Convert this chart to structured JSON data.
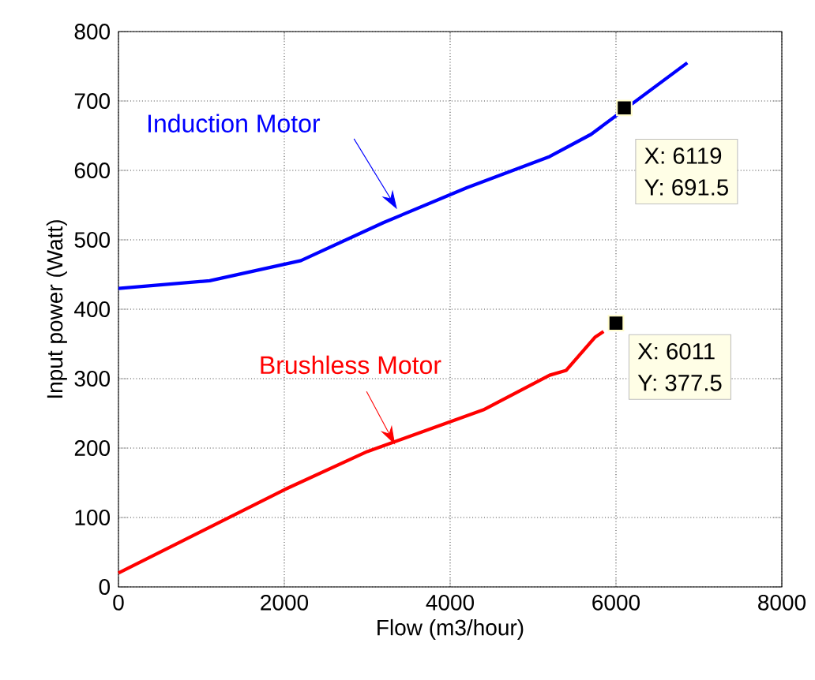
{
  "chart_data": {
    "type": "line",
    "xlabel": "Flow (m3/hour)",
    "ylabel": "Input power  (Watt)",
    "series": [
      {
        "name": "Induction Motor",
        "color": "#0000ff",
        "x": [
          0,
          1100,
          2200,
          3200,
          4200,
          5200,
          5700,
          6860
        ],
        "values": [
          430,
          441,
          470,
          525,
          575,
          620,
          652,
          755
        ]
      },
      {
        "name": "Brushless Motor",
        "color": "#ff0000",
        "x": [
          0,
          1000,
          2000,
          3000,
          4400,
          5200,
          5400,
          5750,
          5850
        ],
        "values": [
          20,
          80,
          140,
          195,
          255,
          305,
          312,
          360,
          368
        ]
      },
      {
        "type": "scatter",
        "color": "#000000",
        "marker": "square",
        "x": [
          6100,
          6000
        ],
        "values": [
          690,
          380
        ]
      }
    ],
    "annotations": [
      "X: 6119",
      "Y: 691.5",
      "X: 6011",
      "Y: 377.5"
    ],
    "xlim": [
      0,
      8000
    ],
    "ylim": [
      0,
      800
    ],
    "xticks": [
      0,
      2000,
      4000,
      6000,
      8000
    ],
    "yticks": [
      0,
      100,
      200,
      300,
      400,
      500,
      600,
      700,
      800
    ],
    "grid": true,
    "marker": "none",
    "line_style": "solid",
    "legend": false
  }
}
